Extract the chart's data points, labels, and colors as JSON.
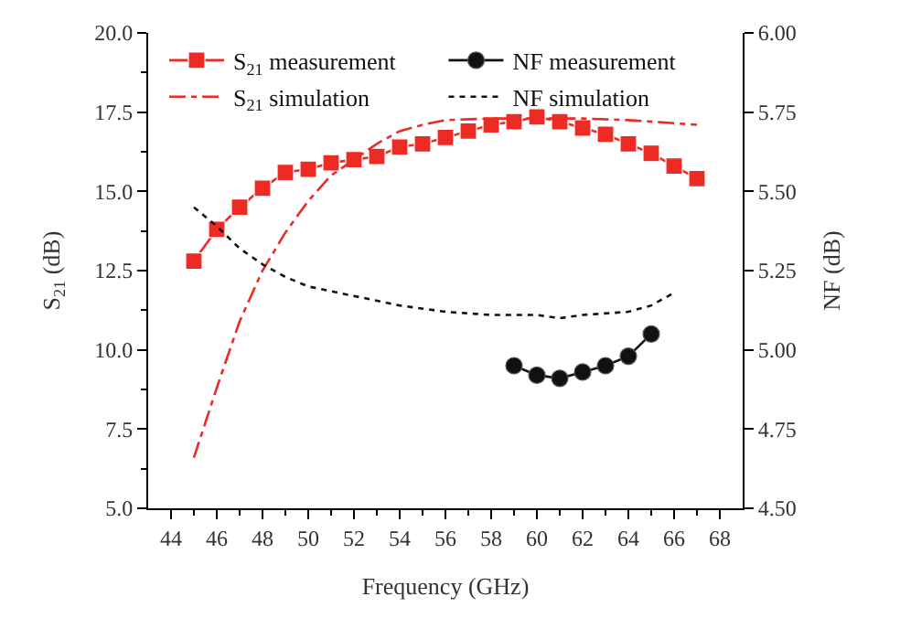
{
  "chart_data": {
    "type": "line",
    "xlabel": "Frequency (GHz)",
    "ylabel": "S$_{21}$ (dB)",
    "y2label": "NF (dB)",
    "xlim": [
      43,
      69
    ],
    "xticks": [
      44,
      46,
      48,
      50,
      52,
      54,
      56,
      58,
      60,
      62,
      64,
      66,
      68
    ],
    "ylim": [
      5,
      20
    ],
    "yticks": [
      {
        "value": 5,
        "label": "5.0"
      },
      7.5,
      {
        "value": 10,
        "label": "10.0"
      },
      12.5,
      {
        "value": 15,
        "label": "15.0"
      },
      17.5,
      {
        "value": 20,
        "label": "20.0"
      }
    ],
    "y2lim": [
      4.5,
      6.0
    ],
    "y2ticks": [
      {
        "value": 4.5,
        "label": "4.50"
      },
      4.75,
      {
        "value": 5,
        "label": "5.00"
      },
      5.25,
      {
        "value": 5.5,
        "label": "5.50"
      },
      5.75,
      {
        "value": 6,
        "label": "6.00"
      }
    ],
    "legend": "top left",
    "series": [
      {
        "name": "S$_{21}$ measurement",
        "color": "#ee2a24",
        "marker": "square",
        "line_style": "solid",
        "x": [
          45,
          46,
          47,
          48,
          49,
          50,
          51,
          52,
          53,
          54,
          55,
          56,
          57,
          58,
          59,
          60,
          61,
          62,
          63,
          64,
          65,
          66,
          67
        ],
        "values": [
          12.8,
          13.8,
          14.5,
          15.1,
          15.6,
          15.7,
          15.9,
          16.0,
          16.1,
          16.4,
          16.5,
          16.7,
          16.9,
          17.1,
          17.2,
          17.35,
          17.2,
          17.0,
          16.8,
          16.5,
          16.2,
          15.8,
          15.4
        ]
      },
      {
        "name": "NF measurement",
        "color": "#111111",
        "marker": "circle",
        "line_style": "solid",
        "axis": "y2",
        "x": [
          59,
          60,
          61,
          62,
          63,
          64,
          65
        ],
        "values": [
          4.95,
          4.92,
          4.91,
          4.93,
          4.95,
          4.98,
          5.05
        ]
      },
      {
        "name": "S$_{21}$ simulation",
        "color": "#ee2a24",
        "marker": "none",
        "line_style": "dashdot",
        "x": [
          45,
          46,
          47,
          48,
          49,
          50,
          51,
          52,
          53,
          54,
          55,
          56,
          58,
          60,
          62,
          64,
          66,
          67
        ],
        "values": [
          6.6,
          8.8,
          10.9,
          12.5,
          13.7,
          14.7,
          15.5,
          16.0,
          16.5,
          16.9,
          17.1,
          17.25,
          17.3,
          17.3,
          17.3,
          17.25,
          17.15,
          17.1
        ]
      },
      {
        "name": "NF simulation",
        "color": "#111111",
        "marker": "none",
        "line_style": "dotted",
        "axis": "y2",
        "x": [
          45,
          46,
          47,
          48,
          49,
          50,
          52,
          54,
          56,
          58,
          60,
          61,
          62,
          64,
          65,
          66
        ],
        "values": [
          5.45,
          5.39,
          5.32,
          5.27,
          5.23,
          5.2,
          5.17,
          5.14,
          5.12,
          5.11,
          5.11,
          5.1,
          5.11,
          5.12,
          5.14,
          5.18
        ]
      }
    ]
  }
}
